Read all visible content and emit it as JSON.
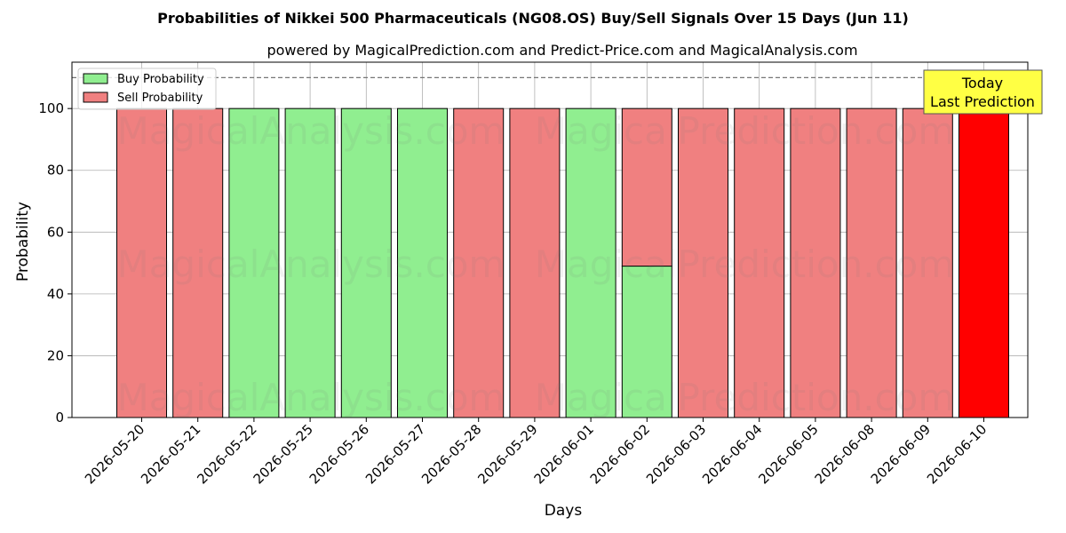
{
  "header": {
    "title": "Probabilities of Nikkei 500 Pharmaceuticals (NG08.OS) Buy/Sell Signals Over 15 Days (Jun 11)",
    "subtitle": "powered by MagicalPrediction.com and Predict-Price.com and MagicalAnalysis.com"
  },
  "watermarks": [
    "MagicalAnalysis.com",
    "MagicalPrediction.com"
  ],
  "annotation": {
    "line1": "Today",
    "line2": "Last Prediction"
  },
  "colors": {
    "buy": "#90ee90",
    "sell": "#f08080",
    "last_sell": "#ff0000",
    "annotation_bg": "#ffff44"
  },
  "chart_data": {
    "type": "bar",
    "stacked": true,
    "xlabel": "Days",
    "ylabel": "Probability",
    "ylim": [
      0,
      115
    ],
    "yticks": [
      0,
      20,
      40,
      60,
      80,
      100
    ],
    "reference_line": 110,
    "grid": true,
    "legend_placement": "top-left",
    "categories": [
      "2026-05-20",
      "2026-05-21",
      "2026-05-22",
      "2026-05-25",
      "2026-05-26",
      "2026-05-27",
      "2026-05-28",
      "2026-05-29",
      "2026-06-01",
      "2026-06-02",
      "2026-06-03",
      "2026-06-04",
      "2026-06-05",
      "2026-06-08",
      "2026-06-09",
      "2026-06-10"
    ],
    "series": [
      {
        "name": "Buy Probability",
        "values": [
          0,
          0,
          100,
          100,
          100,
          100,
          0,
          0,
          100,
          49,
          0,
          0,
          0,
          0,
          0,
          0
        ]
      },
      {
        "name": "Sell Probability",
        "values": [
          100,
          100,
          0,
          0,
          0,
          0,
          100,
          100,
          0,
          51,
          100,
          100,
          100,
          100,
          100,
          100
        ]
      }
    ]
  }
}
